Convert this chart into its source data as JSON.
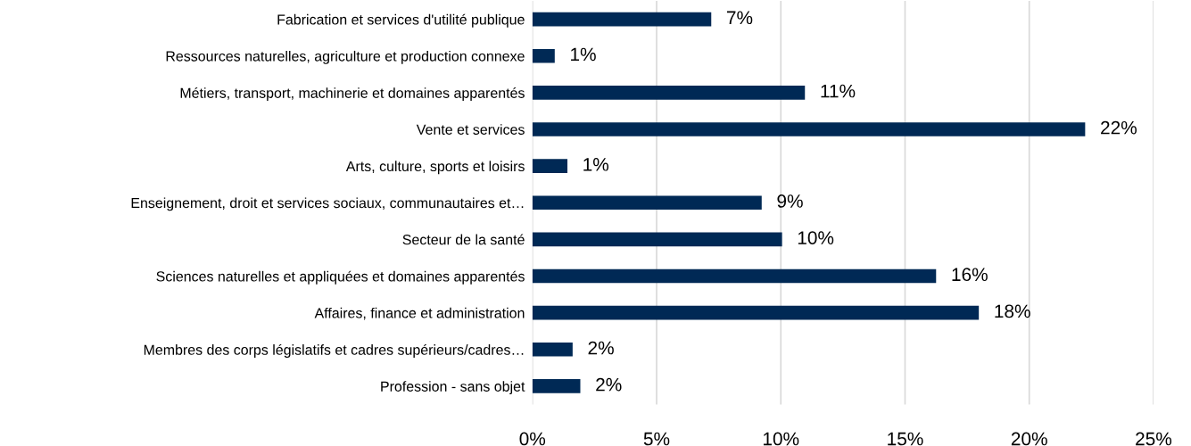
{
  "chart_data": {
    "type": "bar",
    "orientation": "horizontal",
    "categories": [
      "Fabrication et services d'utilité publique",
      "Ressources naturelles, agriculture et production connexe",
      "Métiers, transport, machinerie et domaines apparentés",
      "Vente et services",
      "Arts, culture, sports et loisirs",
      "Enseignement, droit et services sociaux, communautaires et…",
      "Secteur de la santé",
      "Sciences naturelles et appliquées et domaines apparentés",
      "Affaires, finance et administration",
      "Membres des corps législatifs et cadres supérieurs/cadres…",
      "Profession - sans objet"
    ],
    "values": [
      7.2,
      0.9,
      10.97,
      22.25,
      1.41,
      9.23,
      10.05,
      16.25,
      17.97,
      1.62,
      1.93
    ],
    "value_labels": [
      "7%",
      "1%",
      "11%",
      "22%",
      "1%",
      "9%",
      "10%",
      "16%",
      "18%",
      "2%",
      "2%"
    ],
    "color": "#002955",
    "xlim": [
      0,
      25
    ],
    "xticks": [
      {
        "value": 0,
        "label": "0%"
      },
      {
        "value": 5,
        "label": "5%"
      },
      {
        "value": 10,
        "label": "10%"
      },
      {
        "value": 15,
        "label": "15%"
      },
      {
        "value": 20,
        "label": "20%"
      },
      {
        "value": 25,
        "label": "25%"
      }
    ],
    "grid": "x",
    "legend": false
  }
}
